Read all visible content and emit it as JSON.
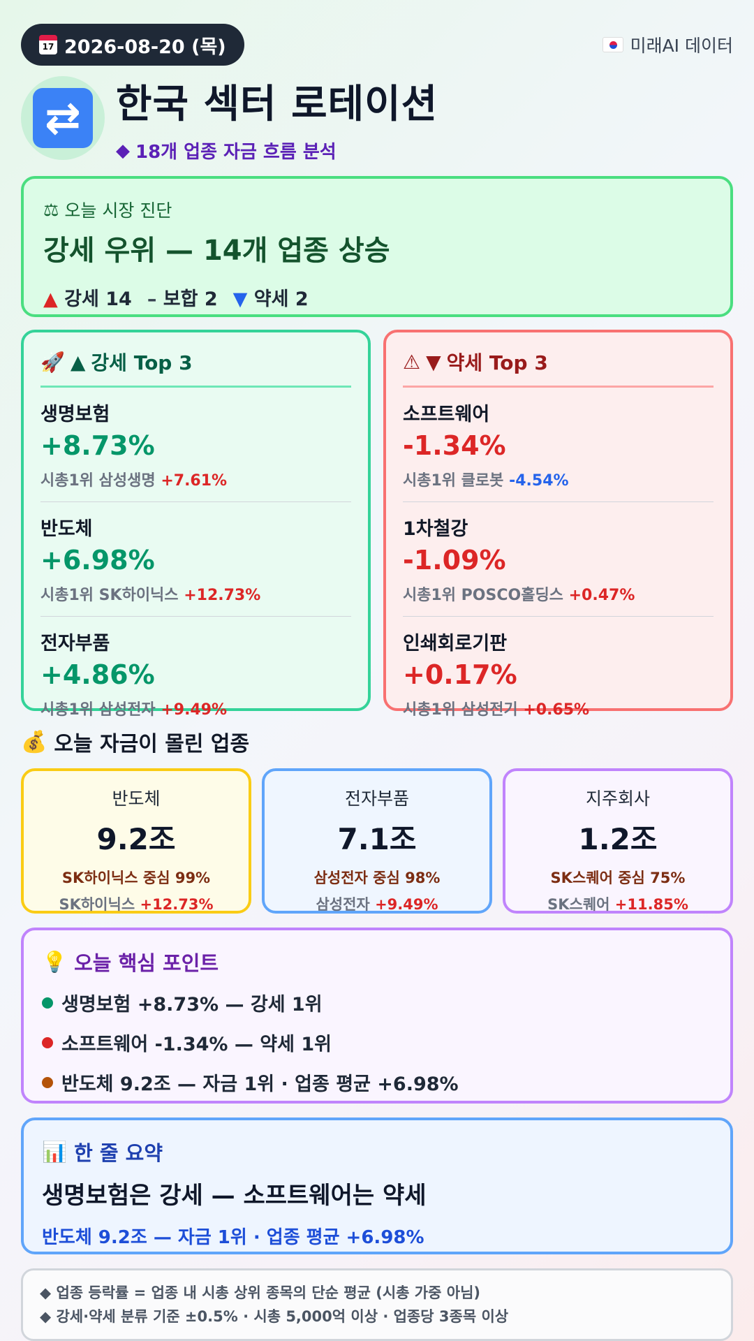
{
  "header": {
    "date": "2026-08-20 (목)",
    "brand": "미래AI 데이터",
    "title": "한국 섹터 로테이션",
    "subtitle": "18개 업종 자금 흐름 분석"
  },
  "diagnosis": {
    "label": "오늘 시장 진단",
    "title": "강세 우위 — 14개 업종 상승",
    "strong": "강세 14",
    "mixed": "보합 2",
    "weak": "약세 2"
  },
  "strong_top3": {
    "heading": "강세 Top 3",
    "items": [
      {
        "name": "생명보험",
        "pct": "+8.73%",
        "leader_prefix": "시총1위 삼성생명",
        "leader_pct": "+7.61%"
      },
      {
        "name": "반도체",
        "pct": "+6.98%",
        "leader_prefix": "시총1위 SK하이닉스",
        "leader_pct": "+12.73%"
      },
      {
        "name": "전자부품",
        "pct": "+4.86%",
        "leader_prefix": "시총1위 삼성전자",
        "leader_pct": "+9.49%"
      }
    ]
  },
  "weak_top3": {
    "heading": "약세 Top 3",
    "items": [
      {
        "name": "소프트웨어",
        "pct": "-1.34%",
        "leader_prefix": "시총1위 클로봇",
        "leader_pct": "-4.54%"
      },
      {
        "name": "1차철강",
        "pct": "-1.09%",
        "leader_prefix": "시총1위 POSCO홀딩스",
        "leader_pct": "+0.47%"
      },
      {
        "name": "인쇄회로기판",
        "pct": "+0.17%",
        "leader_prefix": "시총1위 삼성전기",
        "leader_pct": "+0.65%"
      }
    ]
  },
  "money": {
    "heading": "오늘 자금이 몰린 업종",
    "cards": [
      {
        "name": "반도체",
        "amount": "9.2조",
        "share": "SK하이닉스 중심 99%",
        "leader": "SK하이닉스",
        "leader_pct": "+12.73%"
      },
      {
        "name": "전자부품",
        "amount": "7.1조",
        "share": "삼성전자 중심 98%",
        "leader": "삼성전자",
        "leader_pct": "+9.49%"
      },
      {
        "name": "지주회사",
        "amount": "1.2조",
        "share": "SK스퀘어 중심 75%",
        "leader": "SK스퀘어",
        "leader_pct": "+11.85%"
      }
    ]
  },
  "key_points": {
    "heading": "오늘 핵심 포인트",
    "items": [
      {
        "text": "생명보험 +8.73% — 강세 1위",
        "color": "#059669"
      },
      {
        "text": "소프트웨어 -1.34% — 약세 1위",
        "color": "#dc2626"
      },
      {
        "text": "반도체 9.2조 — 자금 1위 · 업종 평균 +6.98%",
        "color": "#b45309"
      }
    ]
  },
  "summary": {
    "heading": "한 줄 요약",
    "main": "생명보험은 강세 — 소프트웨어는 약세",
    "sub": "반도체 9.2조 — 자금 1위 · 업종 평균 +6.98%"
  },
  "notes": [
    "◆ 업종 등락률 = 업종 내 시총 상위 종목의 단순 평균 (시총 가중 아님)",
    "◆ 강세·약세 분류 기준 ±0.5% · 시총 5,000억 이상 · 업종당 3종목 이상"
  ],
  "icons": {
    "date": "calendar-icon",
    "brand": "korea-flag-icon",
    "title": "rotation-arrows-icon",
    "diagnosis": "scale-icon",
    "strong": "rocket-icon",
    "weak": "warning-icon",
    "money": "money-bag-icon",
    "key": "lightbulb-icon",
    "summary": "bar-chart-icon"
  }
}
